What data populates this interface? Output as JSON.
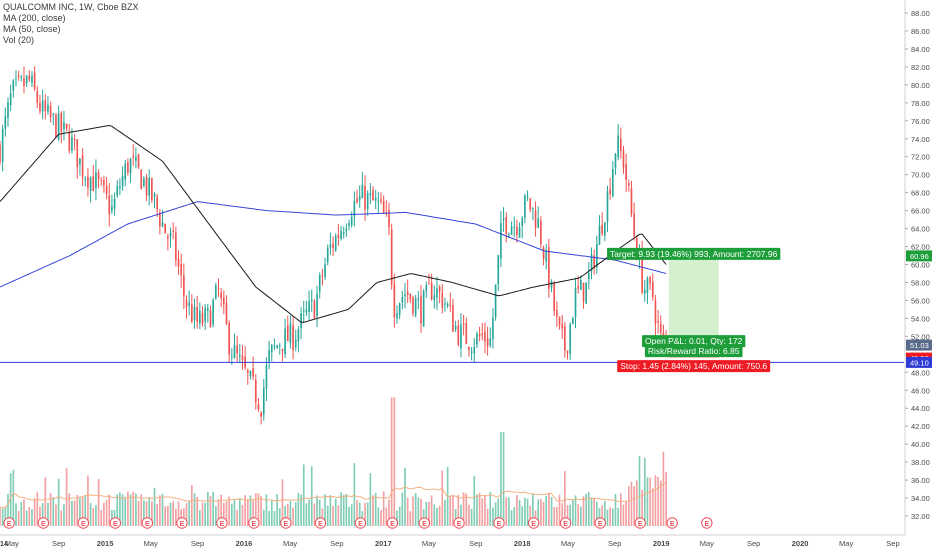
{
  "header": {
    "symbol_line": "QUALCOMM INC, 1W, Cboe BZX",
    "indicators": [
      "MA (200, close)",
      "MA (50, close)",
      "Vol (20)"
    ]
  },
  "chart_data": {
    "type": "candlestick",
    "price_axis": {
      "ylim": [
        30.0,
        89.0
      ],
      "ticks": [
        "88.00",
        "86.00",
        "84.00",
        "82.00",
        "80.00",
        "78.00",
        "76.00",
        "74.00",
        "72.00",
        "70.00",
        "68.00",
        "66.00",
        "64.00",
        "62.00",
        "60.00",
        "58.00",
        "56.00",
        "54.00",
        "52.00",
        "50.00",
        "48.00",
        "46.00",
        "44.00",
        "42.00",
        "40.00",
        "38.00",
        "36.00",
        "34.00",
        "32.00"
      ]
    },
    "time_axis": {
      "start": "2014-03-31",
      "end": "2020-09-30",
      "labels": [
        {
          "text": "14",
          "date": "2014-01-01"
        },
        {
          "text": "May",
          "date": "2014-05-01"
        },
        {
          "text": "Sep",
          "date": "2014-09-01"
        },
        {
          "text": "2015",
          "date": "2015-01-01"
        },
        {
          "text": "May",
          "date": "2015-05-01"
        },
        {
          "text": "Sep",
          "date": "2015-09-01"
        },
        {
          "text": "2016",
          "date": "2016-01-01"
        },
        {
          "text": "May",
          "date": "2016-05-01"
        },
        {
          "text": "Sep",
          "date": "2016-09-01"
        },
        {
          "text": "2017",
          "date": "2017-01-01"
        },
        {
          "text": "May",
          "date": "2017-05-01"
        },
        {
          "text": "Sep",
          "date": "2017-09-01"
        },
        {
          "text": "2018",
          "date": "2018-01-01"
        },
        {
          "text": "May",
          "date": "2018-05-01"
        },
        {
          "text": "Sep",
          "date": "2018-09-01"
        },
        {
          "text": "2019",
          "date": "2019-01-01"
        },
        {
          "text": "May",
          "date": "2019-05-01"
        },
        {
          "text": "Sep",
          "date": "2019-09-01"
        },
        {
          "text": "2020",
          "date": "2020-01-01"
        },
        {
          "text": "May",
          "date": "2020-05-01"
        },
        {
          "text": "Sep",
          "date": "2020-09-01"
        }
      ]
    },
    "price_anchors": [
      [
        "2014-03-31",
        73.0
      ],
      [
        "2014-05-01",
        79.0
      ],
      [
        "2014-06-15",
        80.5
      ],
      [
        "2014-07-20",
        77.0
      ],
      [
        "2014-08-25",
        75.5
      ],
      [
        "2014-09-30",
        74.0
      ],
      [
        "2014-11-05",
        70.5
      ],
      [
        "2014-12-10",
        69.0
      ],
      [
        "2015-01-20",
        66.0
      ],
      [
        "2015-02-10",
        69.0
      ],
      [
        "2015-03-05",
        71.5
      ],
      [
        "2015-04-10",
        69.5
      ],
      [
        "2015-05-10",
        67.0
      ],
      [
        "2015-06-10",
        63.5
      ],
      [
        "2015-07-01",
        62.0
      ],
      [
        "2015-07-30",
        56.0
      ],
      [
        "2015-08-30",
        53.5
      ],
      [
        "2015-09-30",
        54.0
      ],
      [
        "2015-10-25",
        57.0
      ],
      [
        "2015-11-25",
        51.0
      ],
      [
        "2015-12-20",
        49.0
      ],
      [
        "2016-01-20",
        46.5
      ],
      [
        "2016-02-15",
        44.5
      ],
      [
        "2016-03-05",
        49.5
      ],
      [
        "2016-04-05",
        51.5
      ],
      [
        "2016-05-10",
        52.0
      ],
      [
        "2016-06-15",
        54.5
      ],
      [
        "2016-07-05",
        55.5
      ],
      [
        "2016-08-10",
        61.5
      ],
      [
        "2016-09-05",
        63.5
      ],
      [
        "2016-10-10",
        66.5
      ],
      [
        "2016-11-10",
        67.5
      ],
      [
        "2016-12-20",
        66.5
      ],
      [
        "2017-01-15",
        64.0
      ],
      [
        "2017-01-28",
        55.5
      ],
      [
        "2017-03-01",
        57.0
      ],
      [
        "2017-04-10",
        55.0
      ],
      [
        "2017-05-10",
        57.5
      ],
      [
        "2017-06-10",
        56.0
      ],
      [
        "2017-07-15",
        52.5
      ],
      [
        "2017-08-20",
        51.5
      ],
      [
        "2017-09-20",
        52.0
      ],
      [
        "2017-10-10",
        51.5
      ],
      [
        "2017-11-10",
        65.0
      ],
      [
        "2017-12-15",
        64.5
      ],
      [
        "2018-01-15",
        67.0
      ],
      [
        "2018-02-10",
        65.0
      ],
      [
        "2018-03-10",
        59.0
      ],
      [
        "2018-04-05",
        52.5
      ],
      [
        "2018-04-25",
        50.5
      ],
      [
        "2018-05-20",
        56.5
      ],
      [
        "2018-06-20",
        57.5
      ],
      [
        "2018-07-20",
        63.0
      ],
      [
        "2018-08-15",
        68.0
      ],
      [
        "2018-09-05",
        73.5
      ],
      [
        "2018-09-25",
        71.5
      ],
      [
        "2018-10-20",
        64.0
      ],
      [
        "2018-11-15",
        57.5
      ],
      [
        "2018-12-10",
        56.5
      ],
      [
        "2018-12-28",
        52.0
      ],
      [
        "2019-01-05",
        51.0
      ],
      [
        "2019-01-14",
        51.0
      ]
    ],
    "volume_axis": {
      "range": [
        0,
        55
      ]
    },
    "ma200_anchors": [
      [
        "2014-03-31",
        57.5
      ],
      [
        "2014-10-01",
        61.0
      ],
      [
        "2015-03-01",
        64.5
      ],
      [
        "2015-09-01",
        67.0
      ],
      [
        "2016-03-01",
        66.0
      ],
      [
        "2016-09-01",
        65.5
      ],
      [
        "2017-03-01",
        65.8
      ],
      [
        "2017-09-01",
        64.5
      ],
      [
        "2018-03-01",
        61.5
      ],
      [
        "2018-09-01",
        60.5
      ],
      [
        "2019-01-14",
        59.0
      ]
    ],
    "ma50_anchors": [
      [
        "2014-03-31",
        67.0
      ],
      [
        "2014-09-01",
        74.5
      ],
      [
        "2015-01-15",
        75.5
      ],
      [
        "2015-06-01",
        71.5
      ],
      [
        "2015-10-01",
        64.5
      ],
      [
        "2016-02-01",
        57.5
      ],
      [
        "2016-06-01",
        53.5
      ],
      [
        "2016-10-01",
        55.0
      ],
      [
        "2016-12-15",
        58.0
      ],
      [
        "2017-03-15",
        59.0
      ],
      [
        "2017-07-01",
        58.0
      ],
      [
        "2017-11-01",
        56.5
      ],
      [
        "2018-02-01",
        57.5
      ],
      [
        "2018-06-01",
        58.5
      ],
      [
        "2018-09-20",
        62.0
      ],
      [
        "2018-11-10",
        63.5
      ],
      [
        "2019-01-14",
        60.0
      ]
    ],
    "horizontal_line": {
      "price": 49.1,
      "color": "#2f3bd6"
    },
    "position": {
      "type": "long",
      "start_date": "2019-01-21",
      "end_date": "2019-06-01",
      "entry": 51.03,
      "target": 60.96,
      "stop": 49.58,
      "target_label": "Target: 9.93 (19.46%) 993, Amount: 2707.96",
      "center_label_1": "Open P&L: 0.01, Qty: 172",
      "center_label_2": "Risk/Reward Ratio: 6.85",
      "stop_label": "Stop: 1.45 (2.84%) 145, Amount: 750.6"
    },
    "axis_badges": [
      {
        "text": "60.96",
        "price": 60.96,
        "color": "#1e9e3a"
      },
      {
        "text": "51.03",
        "price": 51.03,
        "color": "#5a6a8a"
      },
      {
        "text": "49.58",
        "price": 49.58,
        "color": "#ef1b24"
      },
      {
        "text": "49.10",
        "price": 49.1,
        "color": "#2f3bd6"
      }
    ],
    "earnings_dates": [
      "2014-04-24",
      "2014-07-23",
      "2014-11-05",
      "2015-01-28",
      "2015-04-22",
      "2015-07-22",
      "2015-11-04",
      "2016-01-27",
      "2016-04-20",
      "2016-07-20",
      "2016-11-02",
      "2017-01-25",
      "2017-04-19",
      "2017-07-19",
      "2017-11-01",
      "2018-01-31",
      "2018-04-25",
      "2018-07-25",
      "2018-11-07",
      "2019-01-30",
      "2019-05-01"
    ],
    "colors": {
      "up": "#26a69a",
      "down": "#ef5350",
      "ma200": "#3345d6",
      "ma50": "#1a1a1a",
      "target_zone": "#cfeeca",
      "stop_zone": "#f7c9cb",
      "vol_up": "#7fcdb5",
      "vol_down": "#f3a0a2",
      "vol_ma": "#f5b183"
    }
  }
}
